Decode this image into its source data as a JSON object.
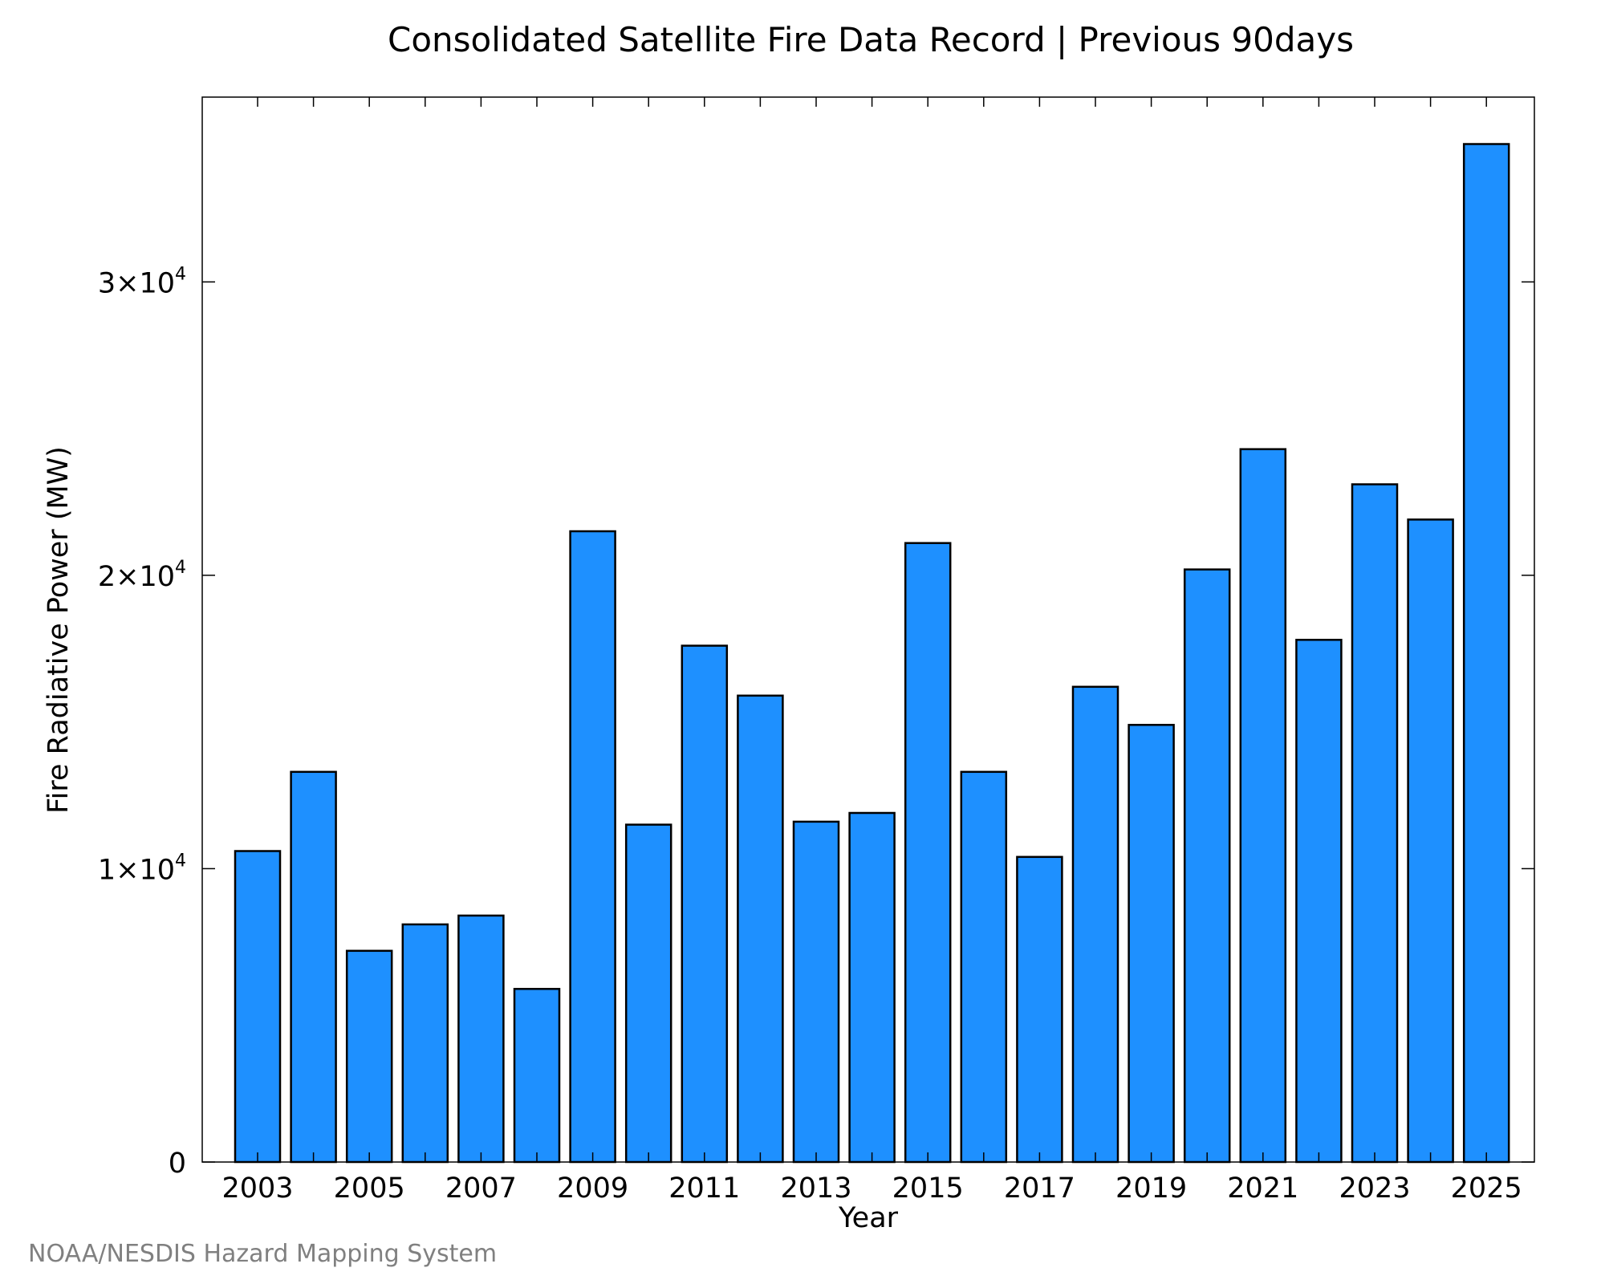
{
  "chart_data": {
    "type": "bar",
    "title": "Consolidated Satellite Fire Data Record | Previous 90days",
    "xlabel": "Year",
    "ylabel": "Fire Radiative Power (MW)",
    "categories": [
      "2003",
      "2004",
      "2005",
      "2006",
      "2007",
      "2008",
      "2009",
      "2010",
      "2011",
      "2012",
      "2013",
      "2014",
      "2015",
      "2016",
      "2017",
      "2018",
      "2019",
      "2020",
      "2021",
      "2022",
      "2023",
      "2024",
      "2025"
    ],
    "x_tick_labels": [
      "2003",
      "2005",
      "2007",
      "2009",
      "2011",
      "2013",
      "2015",
      "2017",
      "2019",
      "2021",
      "2023",
      "2025"
    ],
    "values": [
      10600,
      13300,
      7200,
      8100,
      8400,
      5900,
      21500,
      11500,
      17600,
      15900,
      11600,
      11900,
      21100,
      13300,
      10400,
      16200,
      14900,
      20200,
      24300,
      17800,
      23100,
      21900,
      34700
    ],
    "ylim": [
      0,
      36300
    ],
    "y_ticks": [
      {
        "value": 0,
        "mantissa": "0",
        "exponent": ""
      },
      {
        "value": 10000,
        "mantissa": "1×10",
        "exponent": "4"
      },
      {
        "value": 20000,
        "mantissa": "2×10",
        "exponent": "4"
      },
      {
        "value": 30000,
        "mantissa": "3×10",
        "exponent": "4"
      }
    ],
    "grid": false,
    "bar_color": "#1e90ff",
    "bar_edge_color": "#000000"
  },
  "credit": "NOAA/NESDIS Hazard Mapping System"
}
